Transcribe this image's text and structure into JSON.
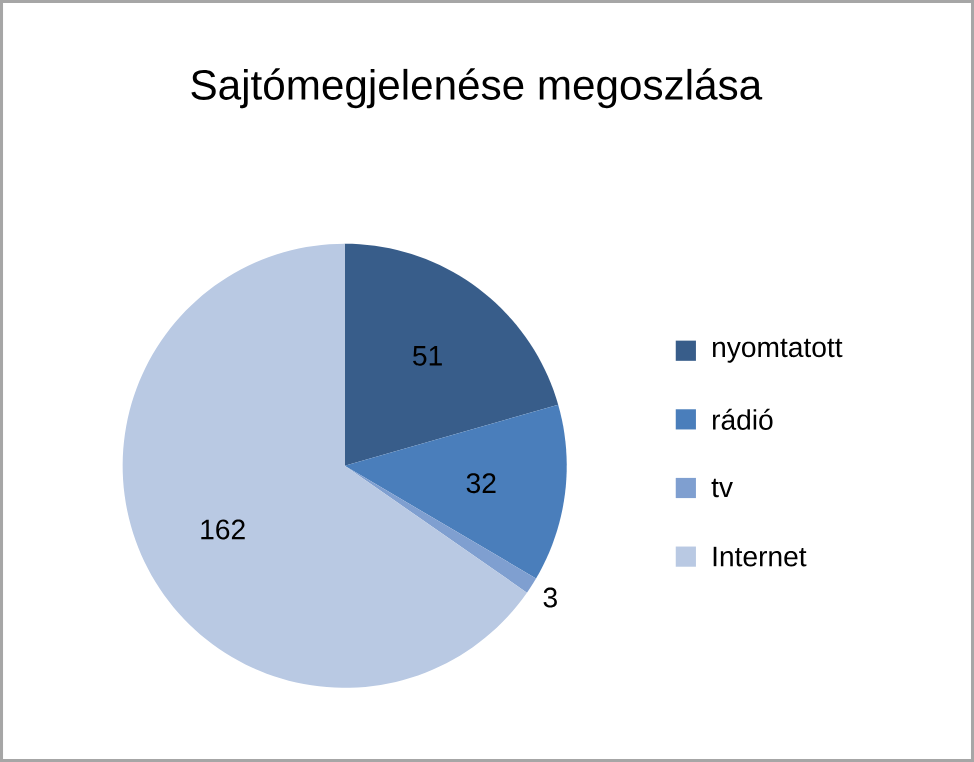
{
  "chart_data": {
    "type": "pie",
    "title": "Sajtómegjelenése megoszlása",
    "categories": [
      "nyomtatott",
      "rádió",
      "tv",
      "Internet"
    ],
    "values": [
      51,
      32,
      3,
      162
    ],
    "colors": [
      "#385d8a",
      "#4a7ebb",
      "#7f9fd0",
      "#b9c9e3"
    ],
    "data_labels": true,
    "legend": "right"
  }
}
